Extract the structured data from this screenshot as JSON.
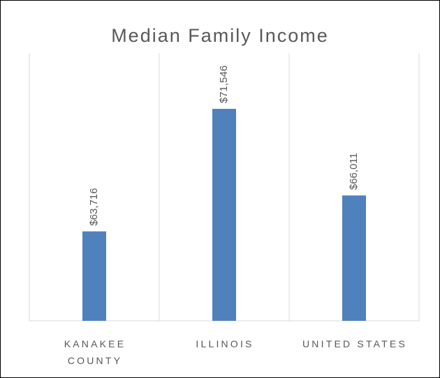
{
  "chart_data": {
    "type": "bar",
    "title": "Median Family Income",
    "categories": [
      "KANAKEE COUNTY",
      "ILLINOIS",
      "UNITED STATES"
    ],
    "values": [
      63716,
      71546,
      66011
    ],
    "value_labels": [
      "$63,716",
      "$71,546",
      "$66,011"
    ],
    "color": "#4f81bd",
    "ylim": [
      58000,
      74000
    ]
  }
}
